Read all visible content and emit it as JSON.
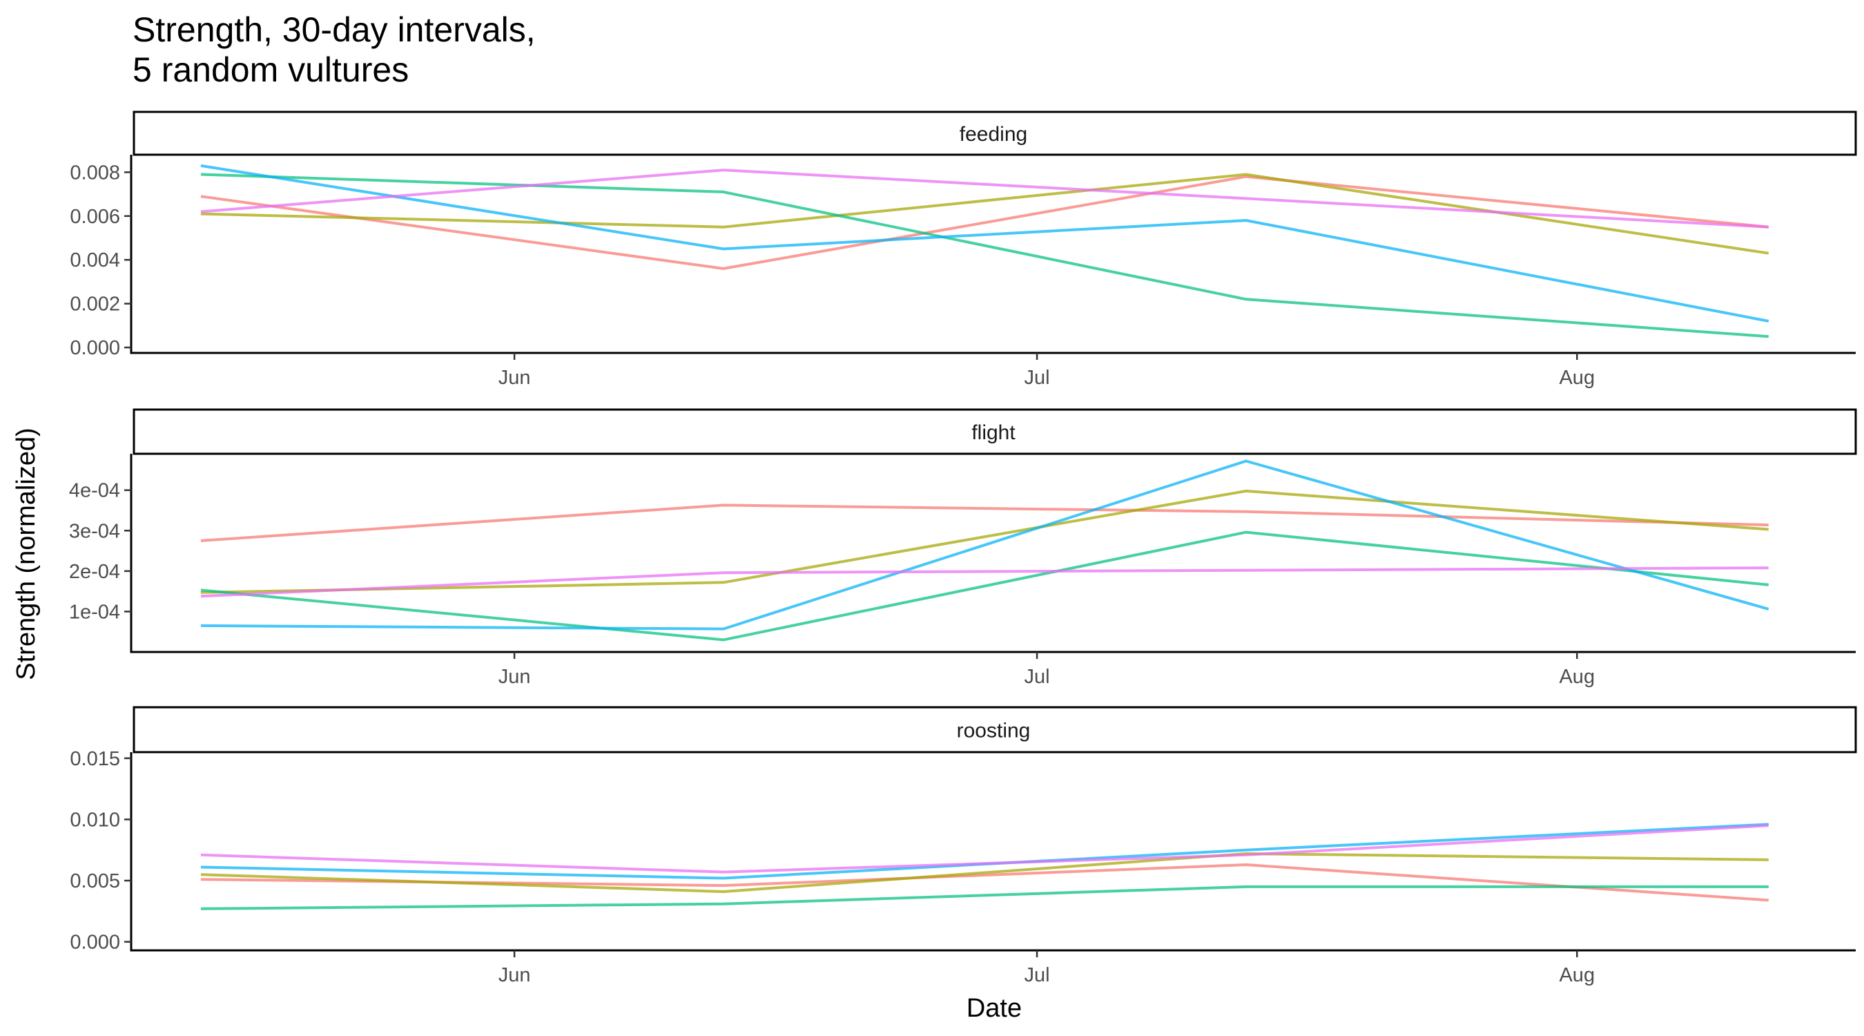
{
  "chart_data": {
    "type": "line",
    "title": [
      "Strength, 30-day intervals,",
      "5 random vultures"
    ],
    "xlabel": "Date",
    "ylabel": "Strength (normalized)",
    "grid": false,
    "legend": "none",
    "x": [
      "2023-05-14",
      "2023-06-13",
      "2023-07-13",
      "2023-08-12"
    ],
    "x_ticks": [
      {
        "date": "2023-06-01",
        "label": "Jun"
      },
      {
        "date": "2023-07-01",
        "label": "Jul"
      },
      {
        "date": "2023-08-01",
        "label": "Aug"
      }
    ],
    "x_range": [
      "2023-05-10",
      "2023-08-17"
    ],
    "colors": [
      "#F8766D",
      "#A3A500",
      "#00BF7D",
      "#00B0F6",
      "#E76BF3"
    ],
    "facets": [
      {
        "name": "feeding",
        "ylim": [
          -0.00025,
          0.0088
        ],
        "y_ticks": [
          {
            "value": 0,
            "label": "0.000"
          },
          {
            "value": 0.002,
            "label": "0.002"
          },
          {
            "value": 0.004,
            "label": "0.004"
          },
          {
            "value": 0.006,
            "label": "0.006"
          },
          {
            "value": 0.008,
            "label": "0.008"
          }
        ],
        "series": [
          {
            "values": [
              0.0069,
              0.0036,
              0.0078,
              0.0055
            ]
          },
          {
            "values": [
              0.0061,
              0.0055,
              0.0079,
              0.0043
            ]
          },
          {
            "values": [
              0.0079,
              0.0071,
              0.0022,
              0.0005
            ]
          },
          {
            "values": [
              0.0083,
              0.0045,
              0.0058,
              0.0012
            ]
          },
          {
            "values": [
              0.0062,
              0.0081,
              0.0068,
              0.0055
            ]
          }
        ]
      },
      {
        "name": "flight",
        "ylim": [
          0.0,
          0.00049
        ],
        "y_ticks": [
          {
            "value": 0.0001,
            "label": "1e-04"
          },
          {
            "value": 0.0002,
            "label": "2e-04"
          },
          {
            "value": 0.0003,
            "label": "3e-04"
          },
          {
            "value": 0.0004,
            "label": "4e-04"
          }
        ],
        "series": [
          {
            "values": [
              0.000275,
              0.000363,
              0.000347,
              0.000314
            ]
          },
          {
            "values": [
              0.000147,
              0.000172,
              0.000398,
              0.000303
            ]
          },
          {
            "values": [
              0.000153,
              3e-05,
              0.000296,
              0.000166
            ]
          },
          {
            "values": [
              6.5e-05,
              5.7e-05,
              0.000472,
              0.000106
            ]
          },
          {
            "values": [
              0.000138,
              0.000196,
              0.000202,
              0.000208
            ]
          }
        ]
      },
      {
        "name": "roosting",
        "ylim": [
          -0.0007,
          0.0155
        ],
        "y_ticks": [
          {
            "value": 0,
            "label": "0.000"
          },
          {
            "value": 0.005,
            "label": "0.005"
          },
          {
            "value": 0.01,
            "label": "0.010"
          },
          {
            "value": 0.015,
            "label": "0.015"
          }
        ],
        "series": [
          {
            "values": [
              0.0051,
              0.0046,
              0.0063,
              0.0034
            ]
          },
          {
            "values": [
              0.0055,
              0.0041,
              0.0072,
              0.0067
            ]
          },
          {
            "values": [
              0.0027,
              0.0031,
              0.0045,
              0.0045
            ]
          },
          {
            "values": [
              0.0061,
              0.0052,
              0.0075,
              0.0096
            ]
          },
          {
            "values": [
              0.0071,
              0.0057,
              0.0071,
              0.0095
            ]
          }
        ]
      }
    ]
  }
}
